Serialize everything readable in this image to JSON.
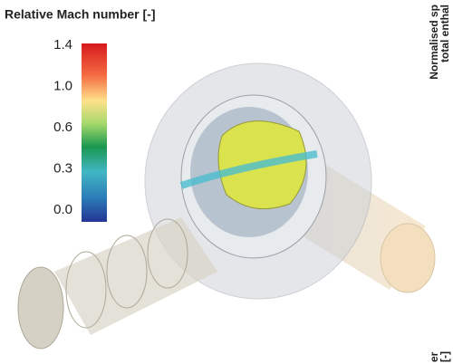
{
  "title": "Relative Mach number [-]",
  "colorbar": {
    "ticks": [
      "1.4",
      "1.0",
      "0.6",
      "0.3",
      "0.0"
    ]
  },
  "side_label": {
    "lines": [
      "Normalised sp",
      "total enthal"
    ]
  },
  "bottom_label": {
    "lines": [
      "er",
      "[-]"
    ]
  }
}
